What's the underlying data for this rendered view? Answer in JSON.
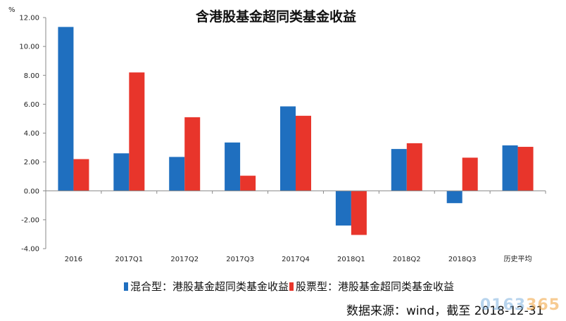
{
  "chart_data": {
    "type": "bar",
    "title": "含港股基金超同类基金收益",
    "ylabel": "%",
    "ylim": [
      -4,
      12
    ],
    "yticks": [
      "-4.00",
      "-2.00",
      "0.00",
      "2.00",
      "4.00",
      "6.00",
      "8.00",
      "10.00",
      "12.00"
    ],
    "categories": [
      "2016",
      "2017Q1",
      "2017Q2",
      "2017Q3",
      "2017Q4",
      "2018Q1",
      "2018Q2",
      "2018Q3",
      "历史平均"
    ],
    "series": [
      {
        "name": "混合型：港股基金超同类基金收益",
        "color": "#1f6fbf",
        "values": [
          11.35,
          2.6,
          2.35,
          3.35,
          5.85,
          -2.4,
          2.9,
          -0.85,
          3.15
        ]
      },
      {
        "name": "股票型：港股基金超同类基金收益",
        "color": "#e8352b",
        "values": [
          2.2,
          8.2,
          5.1,
          1.05,
          5.2,
          -3.05,
          3.3,
          2.3,
          3.05
        ]
      }
    ],
    "grid": false,
    "legend": "bottom"
  },
  "source_text": "数据来源：wind，截至 2018-12-31",
  "watermark": {
    "main": "0163",
    "accent": "365"
  }
}
